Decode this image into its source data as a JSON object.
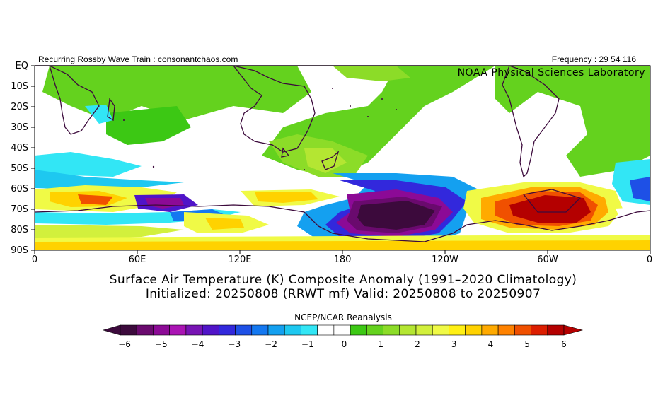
{
  "header": {
    "left": "Recurring Rossby Wave Train : consonantchaos.com",
    "right": "Frequency : 29 54 116"
  },
  "credit": "NOAA Physical Sciences Laboratory",
  "titles": {
    "line1": "Surface Air Temperature (K) Composite Anomaly (1991–2020 Climatology)",
    "line2": "Initialized: 20250808 (RRWT mf) Valid: 20250808 to 20250907"
  },
  "axes": {
    "lat_labels": [
      "EQ",
      "10S",
      "20S",
      "30S",
      "40S",
      "50S",
      "60S",
      "70S",
      "80S",
      "90S"
    ],
    "lon_labels": [
      "0",
      "60E",
      "120E",
      "180",
      "120W",
      "60W",
      "0"
    ]
  },
  "colorbar": {
    "title": "NCEP/NCAR Reanalysis",
    "ticks": [
      "−6",
      "−5",
      "−4",
      "−3",
      "−2",
      "−1",
      "0",
      "1",
      "2",
      "3",
      "4",
      "5",
      "6"
    ],
    "colors": [
      "#3c0a3c",
      "#6a0a6e",
      "#8c0a96",
      "#aa14b4",
      "#7814b4",
      "#5014c8",
      "#3228dc",
      "#1e50e6",
      "#1478f0",
      "#14a0f0",
      "#1ec8f0",
      "#32e6f5",
      "#ffffff",
      "#ffffff",
      "#3cc814",
      "#64d21e",
      "#8cdc28",
      "#b4e632",
      "#d2f03c",
      "#f0fa46",
      "#fff014",
      "#ffd200",
      "#ffaa00",
      "#ff8200",
      "#f05000",
      "#dc1e00",
      "#b40000"
    ]
  },
  "map": {
    "legend_colors": {
      "deep_cold": "#3c0a3c",
      "warm_peak": "#b40000",
      "near_zero": "#ffffff",
      "mild_warm": "#8cdc28"
    }
  }
}
